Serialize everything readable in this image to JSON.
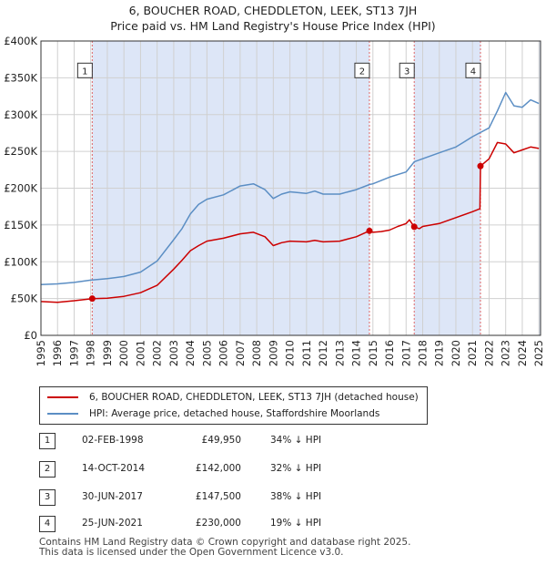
{
  "title_line1": "6, BOUCHER ROAD, CHEDDLETON, LEEK, ST13 7JH",
  "title_line2": "Price paid vs. HM Land Registry's House Price Index (HPI)",
  "chart_data": {
    "type": "line",
    "title": "6, BOUCHER ROAD, CHEDDLETON, LEEK, ST13 7JH — Price paid vs. HM Land Registry's House Price Index (HPI)",
    "xlabel": "",
    "ylabel": "",
    "xlim": [
      1995,
      2025.1
    ],
    "ylim": [
      0,
      400000
    ],
    "y_ticks": [
      0,
      50000,
      100000,
      150000,
      200000,
      250000,
      300000,
      350000,
      400000
    ],
    "y_tick_labels": [
      "£0",
      "£50K",
      "£100K",
      "£150K",
      "£200K",
      "£250K",
      "£300K",
      "£350K",
      "£400K"
    ],
    "x_ticks": [
      1995,
      1996,
      1997,
      1998,
      1999,
      2000,
      2001,
      2002,
      2003,
      2004,
      2005,
      2006,
      2007,
      2008,
      2009,
      2010,
      2011,
      2012,
      2013,
      2014,
      2015,
      2016,
      2017,
      2018,
      2019,
      2020,
      2021,
      2022,
      2023,
      2024,
      2025
    ],
    "x_tick_labels": [
      "1995",
      "1996",
      "1997",
      "1998",
      "1999",
      "2000",
      "2001",
      "2002",
      "2003",
      "2004",
      "2005",
      "2006",
      "2007",
      "2008",
      "2009",
      "2010",
      "2011",
      "2012",
      "2013",
      "2014",
      "2015",
      "2016",
      "2017",
      "2018",
      "2019",
      "2020",
      "2021",
      "2022",
      "2023",
      "2024",
      "2025"
    ],
    "grid": true,
    "colors": {
      "property": "#cc0000",
      "hpi": "#5b8ec4",
      "shade": "#dde6f7",
      "vline": "#e06666"
    },
    "series": [
      {
        "name": "6, BOUCHER ROAD, CHEDDLETON, LEEK, ST13 7JH (detached house)",
        "points": [
          [
            1995,
            46000
          ],
          [
            1996,
            45000
          ],
          [
            1997,
            47000
          ],
          [
            1998.09,
            49950
          ],
          [
            1999,
            50500
          ],
          [
            2000,
            53000
          ],
          [
            2001,
            58000
          ],
          [
            2002,
            68000
          ],
          [
            2003,
            90000
          ],
          [
            2003.5,
            102000
          ],
          [
            2004,
            115000
          ],
          [
            2004.5,
            122000
          ],
          [
            2005,
            128000
          ],
          [
            2006,
            132000
          ],
          [
            2007,
            138000
          ],
          [
            2007.8,
            140000
          ],
          [
            2008.5,
            134000
          ],
          [
            2009,
            122000
          ],
          [
            2009.5,
            126000
          ],
          [
            2010,
            128000
          ],
          [
            2011,
            127000
          ],
          [
            2011.5,
            129000
          ],
          [
            2012,
            127000
          ],
          [
            2013,
            128000
          ],
          [
            2014,
            134000
          ],
          [
            2014.79,
            142000
          ],
          [
            2015,
            140000
          ],
          [
            2015.5,
            141000
          ],
          [
            2016,
            143000
          ],
          [
            2016.5,
            148000
          ],
          [
            2017,
            152000
          ],
          [
            2017.2,
            157000
          ],
          [
            2017.49,
            147500
          ],
          [
            2017.8,
            145000
          ],
          [
            2018,
            148000
          ],
          [
            2019,
            152000
          ],
          [
            2020,
            160000
          ],
          [
            2021,
            168000
          ],
          [
            2021.45,
            172000
          ],
          [
            2021.48,
            230000
          ],
          [
            2022,
            240000
          ],
          [
            2022.5,
            262000
          ],
          [
            2023,
            260000
          ],
          [
            2023.5,
            248000
          ],
          [
            2024,
            252000
          ],
          [
            2024.5,
            256000
          ],
          [
            2025,
            254000
          ]
        ]
      },
      {
        "name": "HPI: Average price, detached house, Staffordshire Moorlands",
        "points": [
          [
            1995,
            69000
          ],
          [
            1996,
            70000
          ],
          [
            1997,
            72000
          ],
          [
            1998,
            75000
          ],
          [
            1999,
            77000
          ],
          [
            2000,
            80000
          ],
          [
            2001,
            86000
          ],
          [
            2002,
            101000
          ],
          [
            2003,
            130000
          ],
          [
            2003.5,
            145000
          ],
          [
            2004,
            165000
          ],
          [
            2004.5,
            178000
          ],
          [
            2005,
            185000
          ],
          [
            2006,
            191000
          ],
          [
            2007,
            203000
          ],
          [
            2007.8,
            206000
          ],
          [
            2008.5,
            198000
          ],
          [
            2009,
            186000
          ],
          [
            2009.5,
            192000
          ],
          [
            2010,
            195000
          ],
          [
            2011,
            193000
          ],
          [
            2011.5,
            196000
          ],
          [
            2012,
            192000
          ],
          [
            2013,
            192000
          ],
          [
            2014,
            198000
          ],
          [
            2014.8,
            205000
          ],
          [
            2015,
            206000
          ],
          [
            2016,
            215000
          ],
          [
            2017,
            222000
          ],
          [
            2017.5,
            236000
          ],
          [
            2018,
            240000
          ],
          [
            2019,
            248000
          ],
          [
            2020,
            256000
          ],
          [
            2021,
            270000
          ],
          [
            2022,
            282000
          ],
          [
            2022.5,
            305000
          ],
          [
            2023,
            330000
          ],
          [
            2023.5,
            312000
          ],
          [
            2024,
            310000
          ],
          [
            2024.5,
            320000
          ],
          [
            2025,
            315000
          ]
        ]
      }
    ],
    "sales": [
      {
        "label": "1",
        "x": 1998.09,
        "price": 49950
      },
      {
        "label": "2",
        "x": 2014.79,
        "price": 142000
      },
      {
        "label": "3",
        "x": 2017.49,
        "price": 147500
      },
      {
        "label": "4",
        "x": 2021.48,
        "price": 230000
      }
    ],
    "shaded_ranges": [
      [
        1998.09,
        2014.79
      ],
      [
        2017.49,
        2021.48
      ],
      [
        2024.99,
        2025.1
      ]
    ],
    "marker_label_value": 360000
  },
  "legend": {
    "property_label": "6, BOUCHER ROAD, CHEDDLETON, LEEK, ST13 7JH (detached house)",
    "hpi_label": "HPI: Average price, detached house, Staffordshire Moorlands"
  },
  "transactions": [
    {
      "num": "1",
      "date": "02-FEB-1998",
      "price": "£49,950",
      "pct": "34% ↓ HPI"
    },
    {
      "num": "2",
      "date": "14-OCT-2014",
      "price": "£142,000",
      "pct": "32% ↓ HPI"
    },
    {
      "num": "3",
      "date": "30-JUN-2017",
      "price": "£147,500",
      "pct": "38% ↓ HPI"
    },
    {
      "num": "4",
      "date": "25-JUN-2021",
      "price": "£230,000",
      "pct": "19% ↓ HPI"
    }
  ],
  "footer": {
    "line1": "Contains HM Land Registry data © Crown copyright and database right 2025.",
    "line2": "This data is licensed under the Open Government Licence v3.0."
  }
}
